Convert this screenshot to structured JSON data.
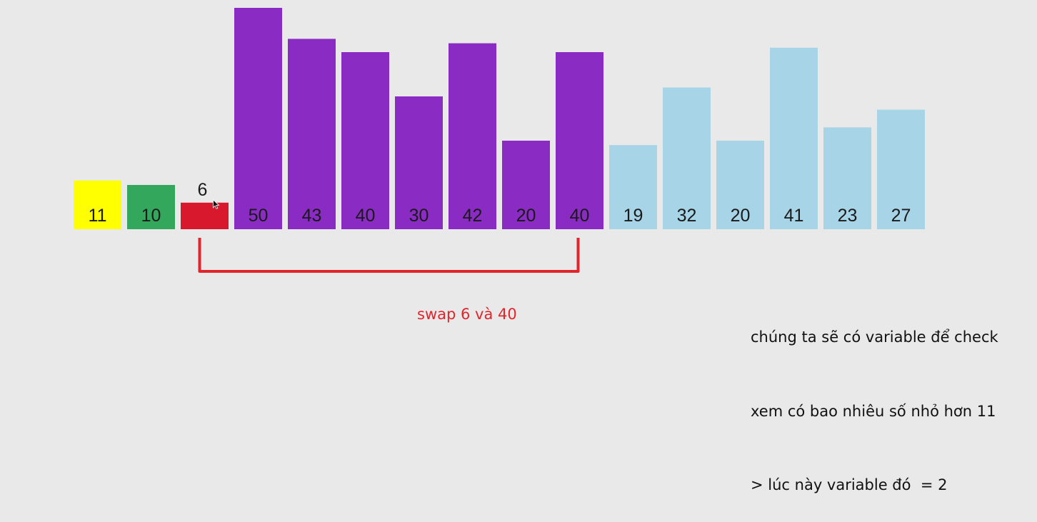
{
  "chart_data": {
    "type": "bar",
    "values": [
      11,
      10,
      6,
      50,
      43,
      40,
      30,
      42,
      20,
      40,
      19,
      32,
      20,
      41,
      23,
      27
    ],
    "labels": [
      "11",
      "10",
      "",
      "50",
      "43",
      "40",
      "30",
      "42",
      "20",
      "40",
      "19",
      "32",
      "20",
      "41",
      "23",
      "27"
    ],
    "states": [
      "pivot",
      "smaller",
      "current",
      "larger",
      "larger",
      "larger",
      "larger",
      "larger",
      "larger",
      "larger",
      "unsorted",
      "unsorted",
      "unsorted",
      "unsorted",
      "unsorted",
      "unsorted"
    ],
    "above_label": {
      "index": 2,
      "text": "6"
    },
    "swap": {
      "from_index": 2,
      "to_index": 9
    }
  },
  "colors": {
    "pivot": "#ffff00",
    "smaller": "#33a85c",
    "current": "#d7182d",
    "larger": "#8a2bc4",
    "unsorted": "#a7d4e6",
    "bracket": "#e0262c",
    "background": "#e9e9e9"
  },
  "annotations": {
    "swap_caption": "swap 6 và 40",
    "note_lines": [
      "chúng ta sẽ có variable để check",
      "xem có bao nhiêu số nhỏ hơn 11",
      "> lúc này variable đó  = 2"
    ]
  },
  "icons": {
    "cursor": "mouse-pointer-icon"
  }
}
